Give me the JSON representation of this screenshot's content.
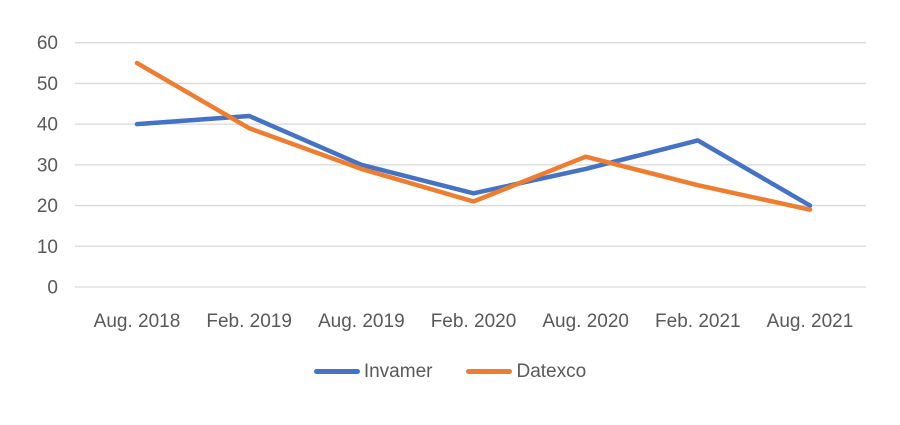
{
  "chart_data": {
    "type": "line",
    "categories": [
      "Aug. 2018",
      "Feb. 2019",
      "Aug. 2019",
      "Feb. 2020",
      "Aug. 2020",
      "Feb. 2021",
      "Aug. 2021"
    ],
    "series": [
      {
        "name": "Invamer",
        "color": "#4472C4",
        "values": [
          40,
          42,
          30,
          23,
          29,
          36,
          20
        ]
      },
      {
        "name": "Datexco",
        "color": "#ED7D31",
        "values": [
          55,
          39,
          29,
          21,
          32,
          25,
          19
        ]
      }
    ],
    "ylim": [
      0,
      60
    ],
    "yticks": [
      0,
      10,
      20,
      30,
      40,
      50,
      60
    ],
    "grid": true,
    "gridline_color": "#D9D9D9",
    "tick_label_color": "#595959",
    "legend_position": "bottom"
  }
}
